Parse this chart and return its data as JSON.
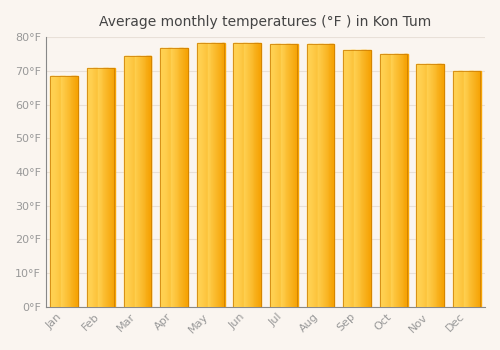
{
  "title": "Average monthly temperatures (°F ) in Kon Tum",
  "months": [
    "Jan",
    "Feb",
    "Mar",
    "Apr",
    "May",
    "Jun",
    "Jul",
    "Aug",
    "Sep",
    "Oct",
    "Nov",
    "Dec"
  ],
  "values": [
    68.5,
    70.7,
    74.5,
    76.8,
    78.3,
    78.3,
    77.9,
    77.9,
    76.3,
    75.0,
    72.0,
    69.8
  ],
  "bar_color_left": "#FFD050",
  "bar_color_right": "#F5A000",
  "bar_edge_color": "#C87800",
  "background_color": "#FAF5F0",
  "plot_bg_color": "#FAF5F0",
  "grid_color": "#E8E0D8",
  "tick_label_color": "#999999",
  "title_color": "#444444",
  "ylim": [
    0,
    80
  ],
  "yticks": [
    0,
    10,
    20,
    30,
    40,
    50,
    60,
    70,
    80
  ],
  "ytick_labels": [
    "0°F",
    "10°F",
    "20°F",
    "30°F",
    "40°F",
    "50°F",
    "60°F",
    "70°F",
    "80°F"
  ],
  "title_fontsize": 10,
  "tick_fontsize": 8,
  "bar_width": 0.75
}
